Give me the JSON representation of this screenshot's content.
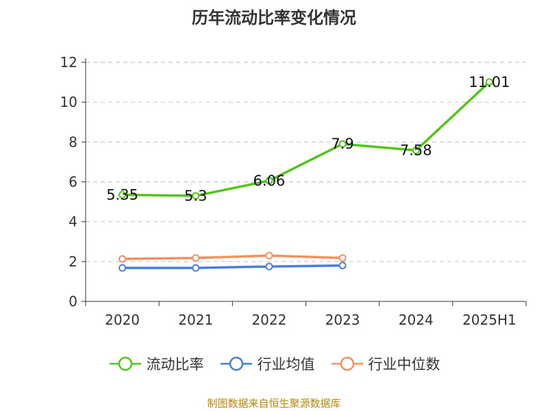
{
  "chart_data": {
    "type": "line",
    "title": "历年流动比率变化情况",
    "categories": [
      "2020",
      "2021",
      "2022",
      "2023",
      "2024",
      "2025H1"
    ],
    "ylim": [
      0,
      12
    ],
    "yticks": [
      0,
      2,
      4,
      6,
      8,
      10,
      12
    ],
    "grid": true,
    "legend_position": "bottom",
    "series": [
      {
        "name": "流动比率",
        "color": "#52c41a",
        "values": [
          5.35,
          5.3,
          6.06,
          7.9,
          7.58,
          11.01
        ],
        "labels": [
          "5.35",
          "5.3",
          "6.06",
          "7.9",
          "7.58",
          "11.01"
        ]
      },
      {
        "name": "行业均值",
        "color": "#4a7fd6",
        "values": [
          1.68,
          1.68,
          1.75,
          1.8,
          null,
          null
        ]
      },
      {
        "name": "行业中位数",
        "color": "#f4915e",
        "values": [
          2.13,
          2.18,
          2.3,
          2.18,
          null,
          null
        ]
      }
    ]
  },
  "source": "制图数据来自恒生聚源数据库"
}
